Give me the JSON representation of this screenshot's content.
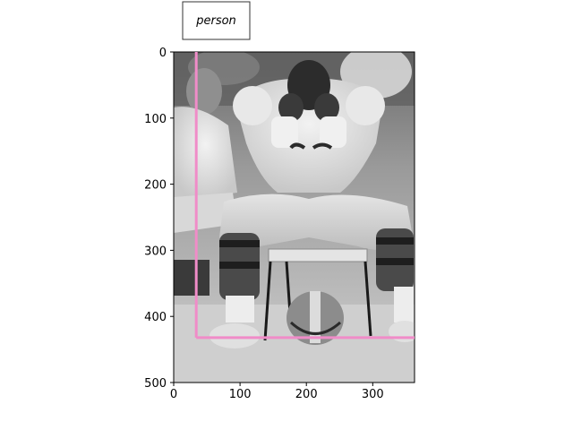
{
  "legend": {
    "label": "person"
  },
  "image_extent": {
    "x": [
      0,
      363
    ],
    "y": [
      500,
      0
    ]
  },
  "annotation": {
    "category": "person",
    "color": "#f08cc8",
    "segments": [
      {
        "from": [
          34,
          0
        ],
        "to": [
          34,
          432
        ]
      },
      {
        "from": [
          34,
          432
        ],
        "to": [
          363,
          432
        ]
      }
    ]
  },
  "axes": {
    "x_ticks": [
      {
        "value": 0,
        "label": "0"
      },
      {
        "value": 100,
        "label": "100"
      },
      {
        "value": 200,
        "label": "200"
      },
      {
        "value": 300,
        "label": "300"
      }
    ],
    "y_ticks": [
      {
        "value": 0,
        "label": "0"
      },
      {
        "value": 100,
        "label": "100"
      },
      {
        "value": 200,
        "label": "200"
      },
      {
        "value": 300,
        "label": "300"
      },
      {
        "value": 400,
        "label": "400"
      },
      {
        "value": 500,
        "label": "500"
      }
    ]
  }
}
